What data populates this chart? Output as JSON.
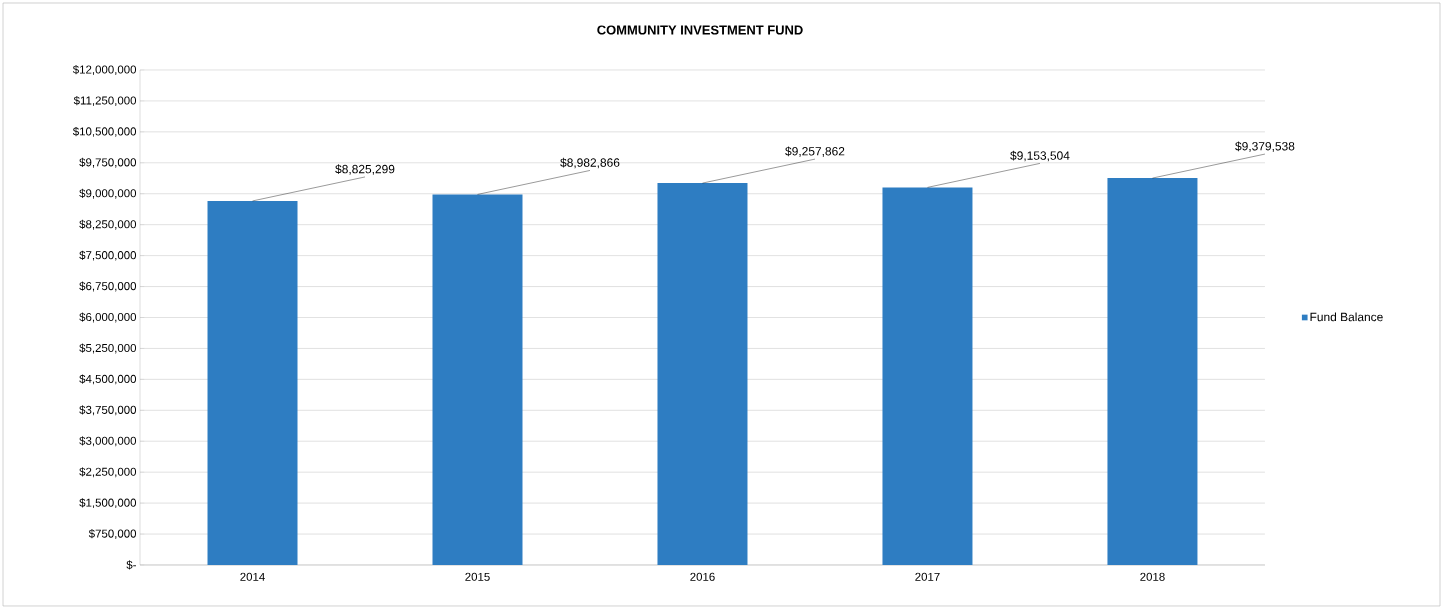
{
  "chart_data": {
    "type": "bar",
    "title": "COMMUNITY INVESTMENT FUND",
    "categories": [
      "2014",
      "2015",
      "2016",
      "2017",
      "2018"
    ],
    "series": [
      {
        "name": "Fund Balance",
        "color": "#2e7dc2",
        "values": [
          8825299,
          8982866,
          9257862,
          9153504,
          9379538
        ],
        "value_labels": [
          "$8,825,299",
          "$8,982,866",
          "$9,257,862",
          "$9,153,504",
          "$9,379,538"
        ]
      }
    ],
    "ylim": [
      0,
      12000000
    ],
    "yticks": [
      {
        "value": 0,
        "label": "$-"
      },
      {
        "value": 750000,
        "label": "$750,000"
      },
      {
        "value": 1500000,
        "label": "$1,500,000"
      },
      {
        "value": 2250000,
        "label": "$2,250,000"
      },
      {
        "value": 3000000,
        "label": "$3,000,000"
      },
      {
        "value": 3750000,
        "label": "$3,750,000"
      },
      {
        "value": 4500000,
        "label": "$4,500,000"
      },
      {
        "value": 5250000,
        "label": "$5,250,000"
      },
      {
        "value": 6000000,
        "label": "$6,000,000"
      },
      {
        "value": 6750000,
        "label": "$6,750,000"
      },
      {
        "value": 7500000,
        "label": "$7,500,000"
      },
      {
        "value": 8250000,
        "label": "$8,250,000"
      },
      {
        "value": 9000000,
        "label": "$9,000,000"
      },
      {
        "value": 9750000,
        "label": "$9,750,000"
      },
      {
        "value": 10500000,
        "label": "$10,500,000"
      },
      {
        "value": 11250000,
        "label": "$11,250,000"
      },
      {
        "value": 12000000,
        "label": "$12,000,000"
      }
    ],
    "grid": "y",
    "legend": "right"
  }
}
